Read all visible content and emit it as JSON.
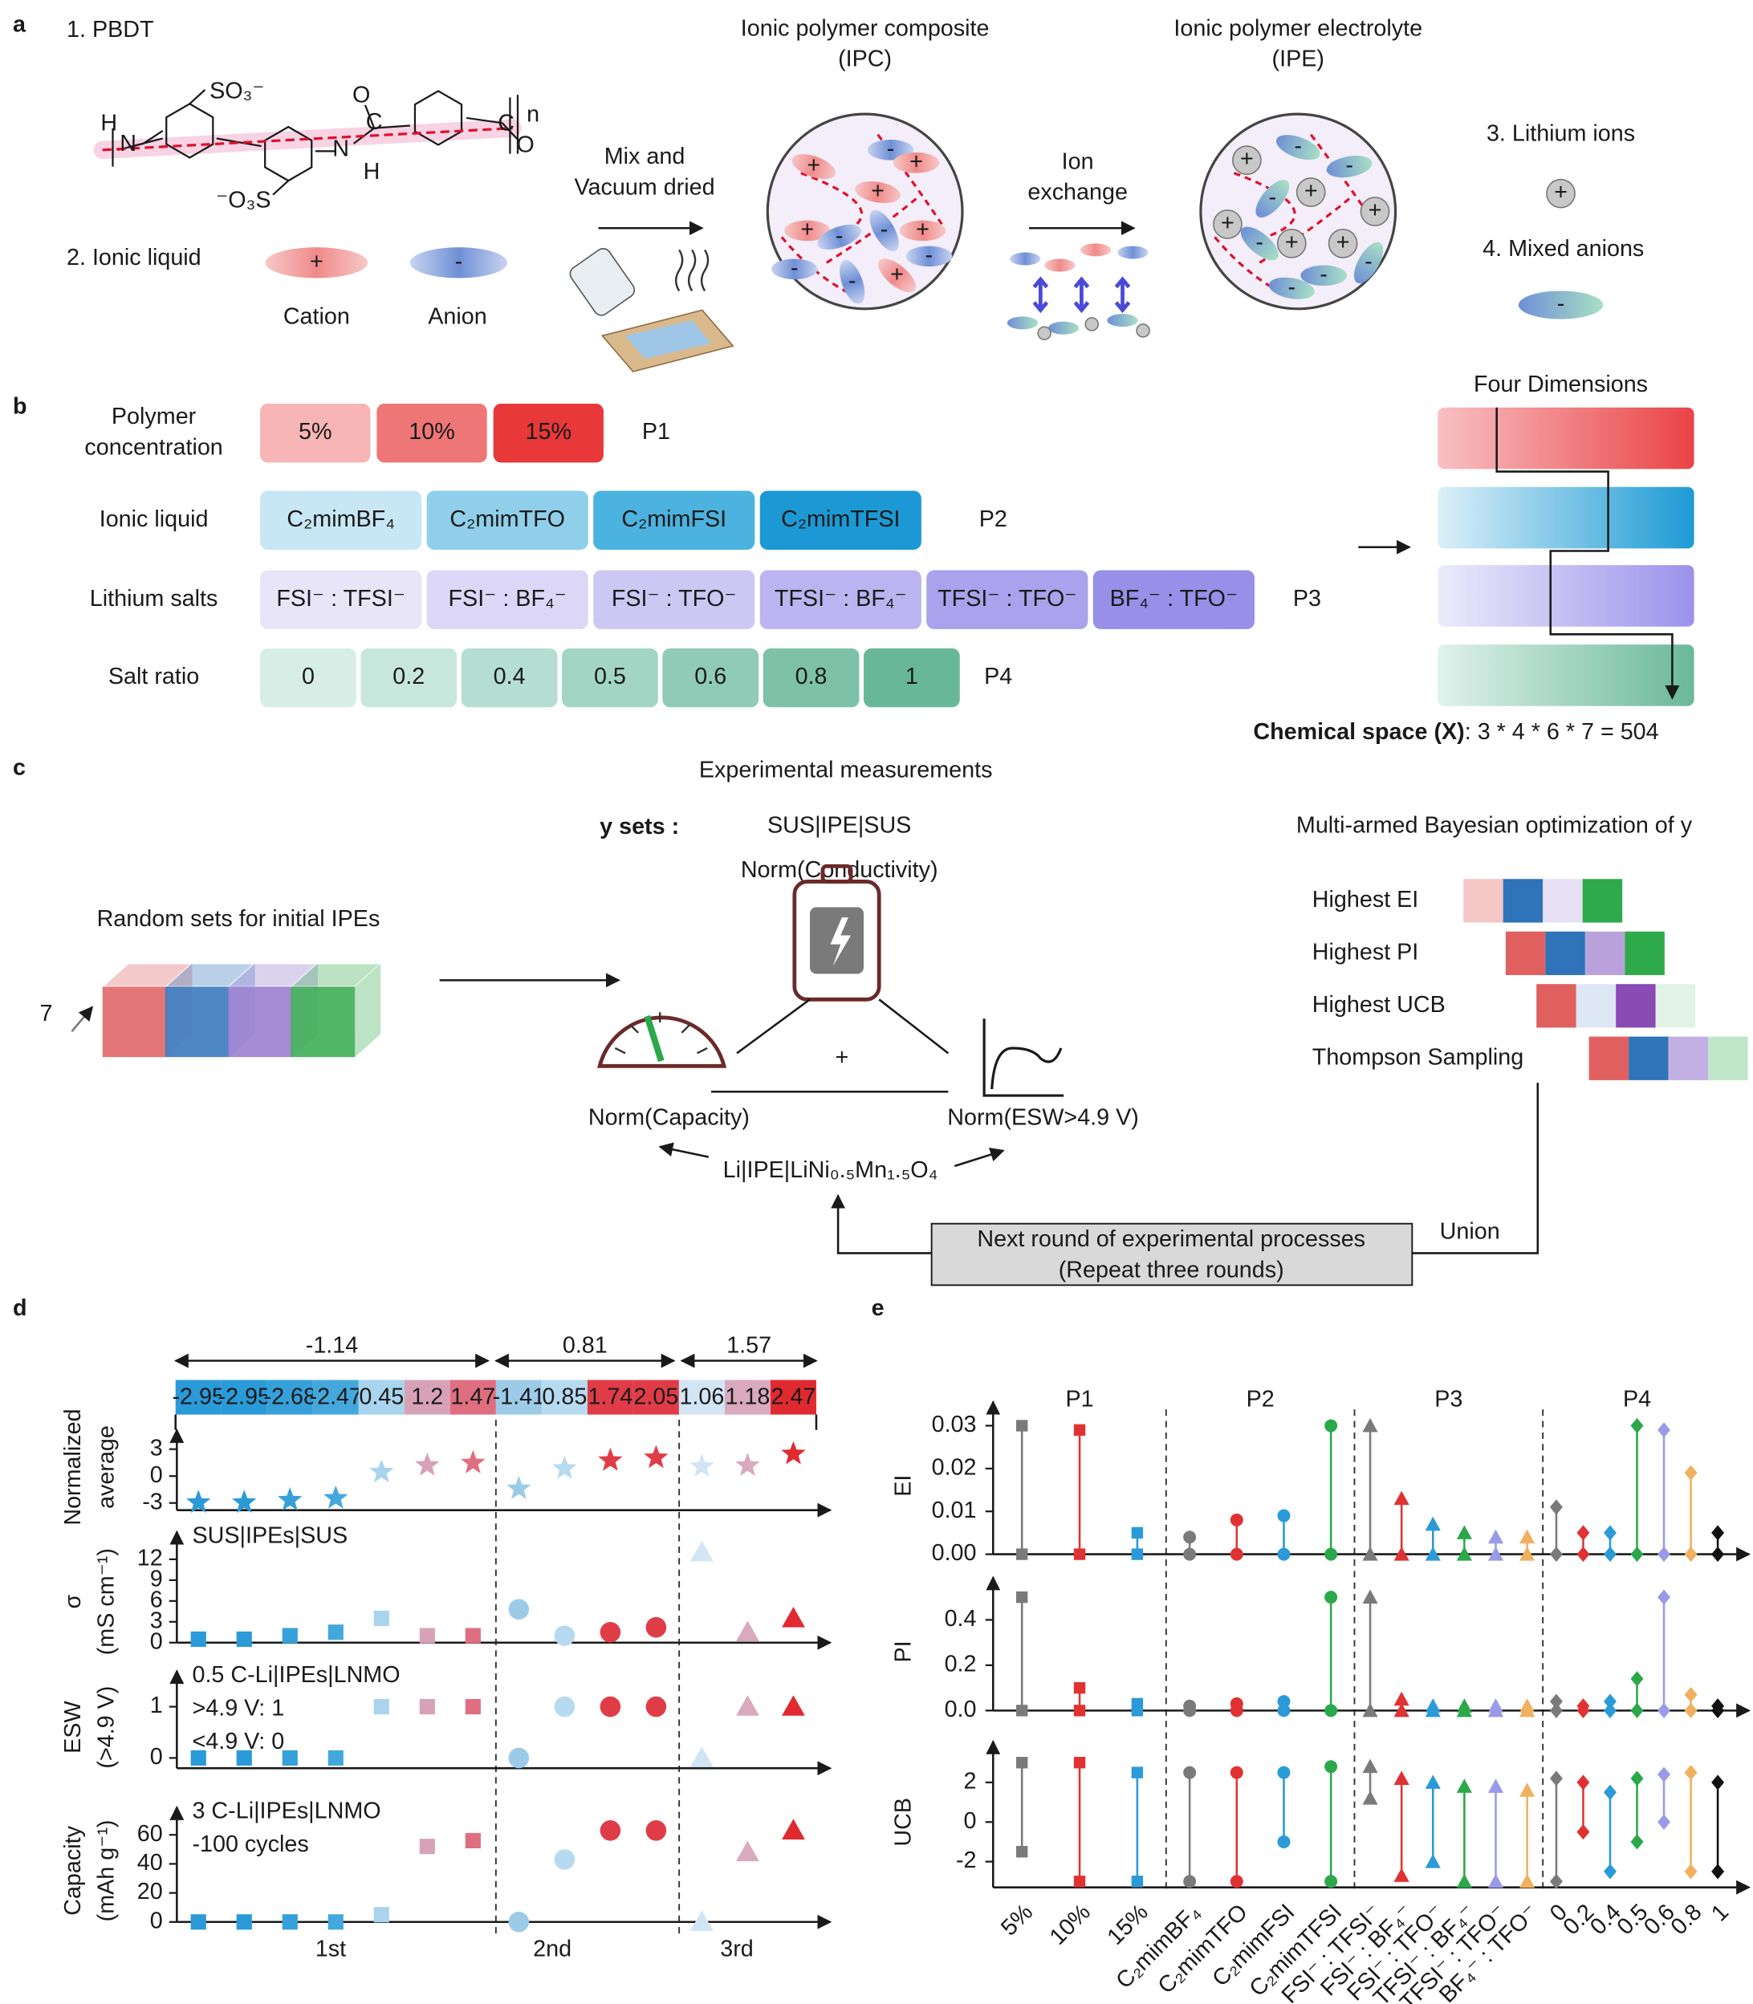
{
  "a": {
    "label": "a",
    "pbdt": "1. PBDT",
    "ionic_liquid": "2. Ionic liquid",
    "cation": "Cation",
    "anion": "Anion",
    "plus": "+",
    "minus": "-",
    "structure": [
      "SO₃⁻",
      "H",
      "N",
      "O",
      "C",
      "n",
      "N",
      "H",
      "⁻O₃S",
      "C",
      "O"
    ],
    "mix": [
      "Mix and",
      "Vacuum dried"
    ],
    "ipc": [
      "Ionic polymer composite",
      "(IPC)"
    ],
    "exchange": [
      "Ion",
      "exchange"
    ],
    "ipe": [
      "Ionic polymer electrolyte",
      "(IPE)"
    ],
    "lithium": "3. Lithium ions",
    "anions": "4. Mixed anions"
  },
  "b": {
    "label": "b",
    "rows": [
      {
        "name": [
          "Polymer",
          "concentration"
        ],
        "items": [
          "5%",
          "10%",
          "15%"
        ],
        "tag": "P1",
        "colors": [
          "#f7b5b5",
          "#ef7676",
          "#e8383a"
        ]
      },
      {
        "name": [
          "Ionic liquid"
        ],
        "items": [
          "C₂mimBF₄",
          "C₂mimTFO",
          "C₂mimFSI",
          "C₂mimTFSI"
        ],
        "tag": "P2",
        "colors": [
          "#c8e7f5",
          "#8fcfea",
          "#4cb2df",
          "#1c99d5"
        ]
      },
      {
        "name": [
          "Lithium salts"
        ],
        "items": [
          "FSI⁻ : TFSI⁻",
          "FSI⁻ : BF₄⁻",
          "FSI⁻ : TFO⁻",
          "TFSI⁻ : BF₄⁻",
          "TFSI⁻ : TFO⁻",
          "BF₄⁻ : TFO⁻"
        ],
        "tag": "P3",
        "colors": [
          "#e8e5f9",
          "#dcd7f7",
          "#cdc7f4",
          "#bcb4f0",
          "#aaa2ec",
          "#978fe8"
        ]
      },
      {
        "name": [
          "Salt ratio"
        ],
        "items": [
          "0",
          "0.2",
          "0.4",
          "0.5",
          "0.6",
          "0.8",
          "1"
        ],
        "tag": "P4",
        "colors": [
          "#d7eee7",
          "#c7e7dd",
          "#b4ded1",
          "#a3d5c5",
          "#8fcbb7",
          "#7dc1a9",
          "#69b799"
        ]
      }
    ],
    "four_dimensions": "Four Dimensions",
    "space_label": "Chemical space (X)",
    "space_value": ": 3 * 4 * 6 * 7 = 504"
  },
  "c": {
    "label": "c",
    "measurements": "Experimental measurements",
    "y_sets": "y sets :",
    "sus": "SUS|IPE|SUS",
    "conductivity": "Norm(Conductivity)",
    "bayes": "Multi-armed Bayesian optimization of y",
    "random": "Random sets for initial IPEs",
    "count": "7",
    "plus": "+",
    "capacity": "Norm(Capacity)",
    "esw": "Norm(ESW>4.9 V)",
    "cell": "Li|IPE|LiNi₀.₅Mn₁.₅O₄",
    "next": [
      "Next round of experimental processes",
      "(Repeat three rounds)"
    ],
    "union": "Union",
    "cubes": [
      "#e06868",
      "#3a7bbf",
      "#9b7fd0",
      "#3fae57"
    ],
    "strategies": [
      {
        "name": "Highest EI",
        "colors": [
          "#f4c6c6",
          "#2f73b8",
          "#e6e0f4",
          "#2eaa4a"
        ]
      },
      {
        "name": "Highest PI",
        "colors": [
          "#e06060",
          "#2f73b8",
          "#b9a2dc",
          "#2eaa4a"
        ]
      },
      {
        "name": "Highest UCB",
        "colors": [
          "#e06060",
          "#dde8f4",
          "#8a4bb4",
          "#e3f4e6"
        ]
      },
      {
        "name": "Thompson Sampling",
        "colors": [
          "#e06060",
          "#2f73b8",
          "#c3b0e2",
          "#bfe6c8"
        ]
      }
    ]
  },
  "chart_data": [
    {
      "type": "scatter",
      "panel_label": "d",
      "rounds": [
        "1st",
        "2nd",
        "3rd"
      ],
      "round_averages": [
        -1.14,
        0.81,
        1.57
      ],
      "markers": [
        "square",
        "circle",
        "triangle"
      ],
      "colors": [
        [
          "#2a9ad8",
          "#2a9ad8",
          "#35a0da",
          "#45a8dc",
          "#a8d4ee",
          "#d8a2b6",
          "#de6e80"
        ],
        [
          "#9ccbe8",
          "#b6dbf0",
          "#e03c48",
          "#e03c48"
        ],
        [
          "#d2e5f5",
          "#d9a9bd",
          "#e02a30"
        ]
      ],
      "panels": [
        {
          "ylabel": [
            "Normalized",
            "average"
          ],
          "ylim": [
            -3.8,
            4
          ],
          "yticks": [
            -3,
            0,
            3
          ],
          "annotations": [],
          "values": [
            [
              -2.95,
              -2.95,
              -2.68,
              -2.47,
              0.45,
              1.2,
              1.47
            ],
            [
              -1.41,
              0.85,
              1.74,
              2.05
            ],
            [
              1.06,
              1.18,
              2.47
            ]
          ]
        },
        {
          "ylabel": [
            "σ",
            "(mS cm⁻¹)"
          ],
          "ylim": [
            0,
            14.5
          ],
          "yticks": [
            0,
            3,
            6,
            9,
            12
          ],
          "annotations": [
            "SUS|IPEs|SUS"
          ],
          "values": [
            [
              0.5,
              0.5,
              1,
              1.5,
              3.5,
              1,
              1
            ],
            [
              4.8,
              1,
              1.5,
              2.2
            ],
            [
              13,
              1.5,
              3.5
            ]
          ]
        },
        {
          "ylabel": [
            "ESW",
            "(>4.9 V)"
          ],
          "ylim": [
            -0.2,
            1.5
          ],
          "yticks": [
            0,
            1
          ],
          "annotations": [
            "0.5 C-Li|IPEs|LNMO",
            ">4.9 V: 1",
            "<4.9 V: 0"
          ],
          "values": [
            [
              0,
              0,
              0,
              0,
              1,
              1,
              1
            ],
            [
              0,
              1,
              1,
              1
            ],
            [
              0,
              1,
              1
            ]
          ]
        },
        {
          "ylabel": [
            "Capacity",
            "(mAh g⁻¹)"
          ],
          "ylim": [
            0,
            72
          ],
          "yticks": [
            0,
            20,
            40,
            60
          ],
          "annotations": [
            "3 C-Li|IPEs|LNMO",
            "-100 cycles"
          ],
          "values": [
            [
              0,
              0,
              0,
              0,
              5,
              52,
              56
            ],
            [
              0,
              43,
              63,
              63
            ],
            [
              0,
              48,
              63
            ]
          ]
        }
      ]
    },
    {
      "type": "range",
      "panel_label": "e",
      "groups": [
        {
          "name": "P1",
          "marker": "square",
          "categories": [
            "5%",
            "10%",
            "15%"
          ],
          "colors": [
            "#7a7a7a",
            "#e03232",
            "#2a9ad8"
          ]
        },
        {
          "name": "P2",
          "marker": "circle",
          "categories": [
            "C₂mimBF₄",
            "C₂mimTFO",
            "C₂mimFSI",
            "C₂mimTFSI"
          ],
          "colors": [
            "#7a7a7a",
            "#e03232",
            "#2a9ad8",
            "#2aa84a"
          ]
        },
        {
          "name": "P3",
          "marker": "triangle",
          "categories": [
            "FSI⁻ : TFSI⁻",
            "FSI⁻ : BF₄⁻",
            "FSI⁻ : TFO⁻",
            "TFSI⁻ : BF₄⁻",
            "TFSI⁻ : TFO⁻",
            "BF₄⁻ : TFO⁻"
          ],
          "colors": [
            "#7a7a7a",
            "#e03232",
            "#2a9ad8",
            "#2aa84a",
            "#9a9ae8",
            "#f0b060"
          ]
        },
        {
          "name": "P4",
          "marker": "diamond",
          "categories": [
            "0",
            "0.2",
            "0.4",
            "0.5",
            "0.6",
            "0.8",
            "1"
          ],
          "colors": [
            "#7a7a7a",
            "#e03232",
            "#2a9ad8",
            "#2aa84a",
            "#9a9ae8",
            "#f0b060",
            "#111111"
          ]
        }
      ],
      "panels": [
        {
          "ylabel": "EI",
          "ylim": [
            0,
            0.032
          ],
          "yticks": [
            {
              "value": 0,
              "label": "0.00"
            },
            {
              "value": 0.01,
              "label": "0.01"
            },
            {
              "value": 0.02,
              "label": "0.02"
            },
            {
              "value": 0.03,
              "label": "0.03"
            }
          ],
          "low": [
            [
              0,
              0,
              0
            ],
            [
              0,
              0,
              0,
              0
            ],
            [
              0,
              0,
              0,
              0,
              0,
              0
            ],
            [
              0,
              0,
              0,
              0,
              0,
              0,
              0
            ]
          ],
          "high": [
            [
              0.03,
              0.029,
              0.005
            ],
            [
              0.004,
              0.008,
              0.009,
              0.03
            ],
            [
              0.03,
              0.013,
              0.007,
              0.005,
              0.004,
              0.004
            ],
            [
              0.011,
              0.005,
              0.005,
              0.03,
              0.029,
              0.019,
              0.005
            ]
          ]
        },
        {
          "ylabel": "PI",
          "ylim": [
            0,
            0.52
          ],
          "yticks": [
            {
              "value": 0,
              "label": "0.0"
            },
            {
              "value": 0.2,
              "label": "0.2"
            },
            {
              "value": 0.4,
              "label": "0.4"
            }
          ],
          "low": [
            [
              0,
              0,
              0
            ],
            [
              0,
              0,
              0,
              0
            ],
            [
              0,
              0,
              0,
              0,
              0,
              0
            ],
            [
              0,
              0,
              0,
              0,
              0,
              0,
              0
            ]
          ],
          "high": [
            [
              0.5,
              0.1,
              0.03
            ],
            [
              0.02,
              0.03,
              0.04,
              0.5
            ],
            [
              0.5,
              0.05,
              0.02,
              0.02,
              0.02,
              0.02
            ],
            [
              0.04,
              0.02,
              0.04,
              0.14,
              0.5,
              0.07,
              0.02
            ]
          ]
        },
        {
          "ylabel": "UCB",
          "ylim": [
            -3.3,
            3.3
          ],
          "yticks": [
            -2,
            0,
            2
          ],
          "low": [
            [
              -1.5,
              -3,
              -3
            ],
            [
              -3,
              -3,
              -1,
              -3
            ],
            [
              1.2,
              -2.7,
              -2,
              -3,
              -3,
              -3
            ],
            [
              -3,
              -0.5,
              -2.5,
              -1,
              0,
              -2.5,
              -2.5
            ]
          ],
          "high": [
            [
              3,
              3,
              2.5
            ],
            [
              2.5,
              2.5,
              2.5,
              2.8
            ],
            [
              2.8,
              2.2,
              2,
              1.8,
              1.8,
              1.6
            ],
            [
              2.2,
              2,
              1.5,
              2.2,
              2.4,
              2.5,
              2
            ]
          ]
        }
      ]
    }
  ]
}
